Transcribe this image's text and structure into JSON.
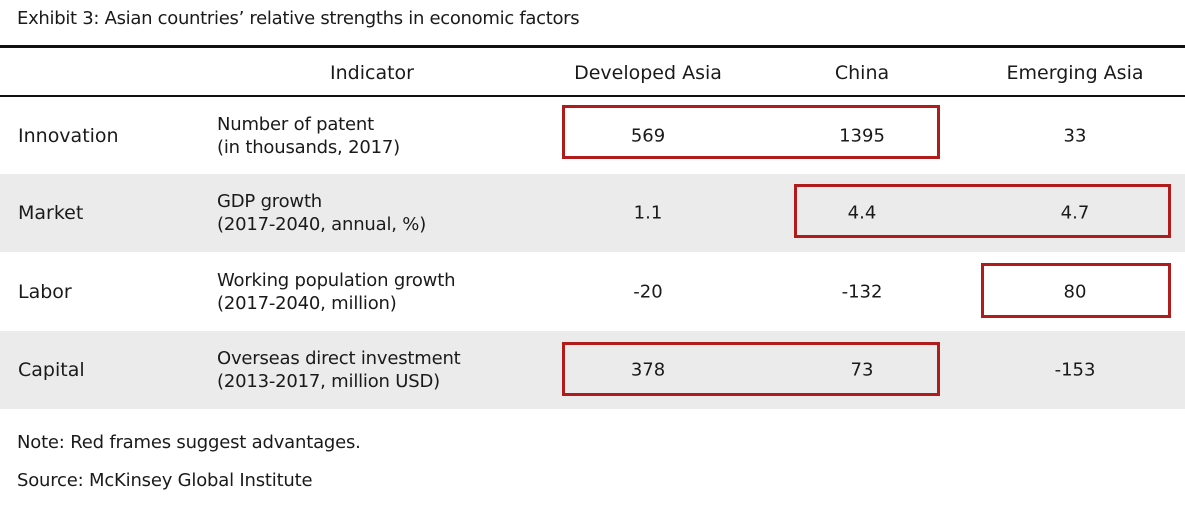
{
  "title": "Exhibit 3: Asian countries’ relative strengths in economic factors",
  "headers": {
    "indicator": "Indicator",
    "developed": "Developed Asia",
    "china": "China",
    "emerging": "Emerging Asia"
  },
  "rows": [
    {
      "category": "Innovation",
      "ind1": "Number of patent",
      "ind2": "(in thousands, 2017)",
      "developed": "569",
      "china": "1395",
      "emerging": "33"
    },
    {
      "category": "Market",
      "ind1": "GDP growth",
      "ind2": "(2017-2040, annual, %)",
      "developed": "1.1",
      "china": "4.4",
      "emerging": "4.7"
    },
    {
      "category": "Labor",
      "ind1": "Working population growth",
      "ind2": "(2017-2040, million)",
      "developed": "-20",
      "china": "-132",
      "emerging": "80"
    },
    {
      "category": "Capital",
      "ind1": "Overseas direct investment",
      "ind2": "(2013-2017, million USD)",
      "developed": "378",
      "china": "73",
      "emerging": "-153"
    }
  ],
  "note": "Note: Red frames suggest advantages.",
  "source": "Source: McKinsey Global Institute",
  "colors": {
    "frame": "#b01c1c",
    "band": "#ebebeb"
  }
}
